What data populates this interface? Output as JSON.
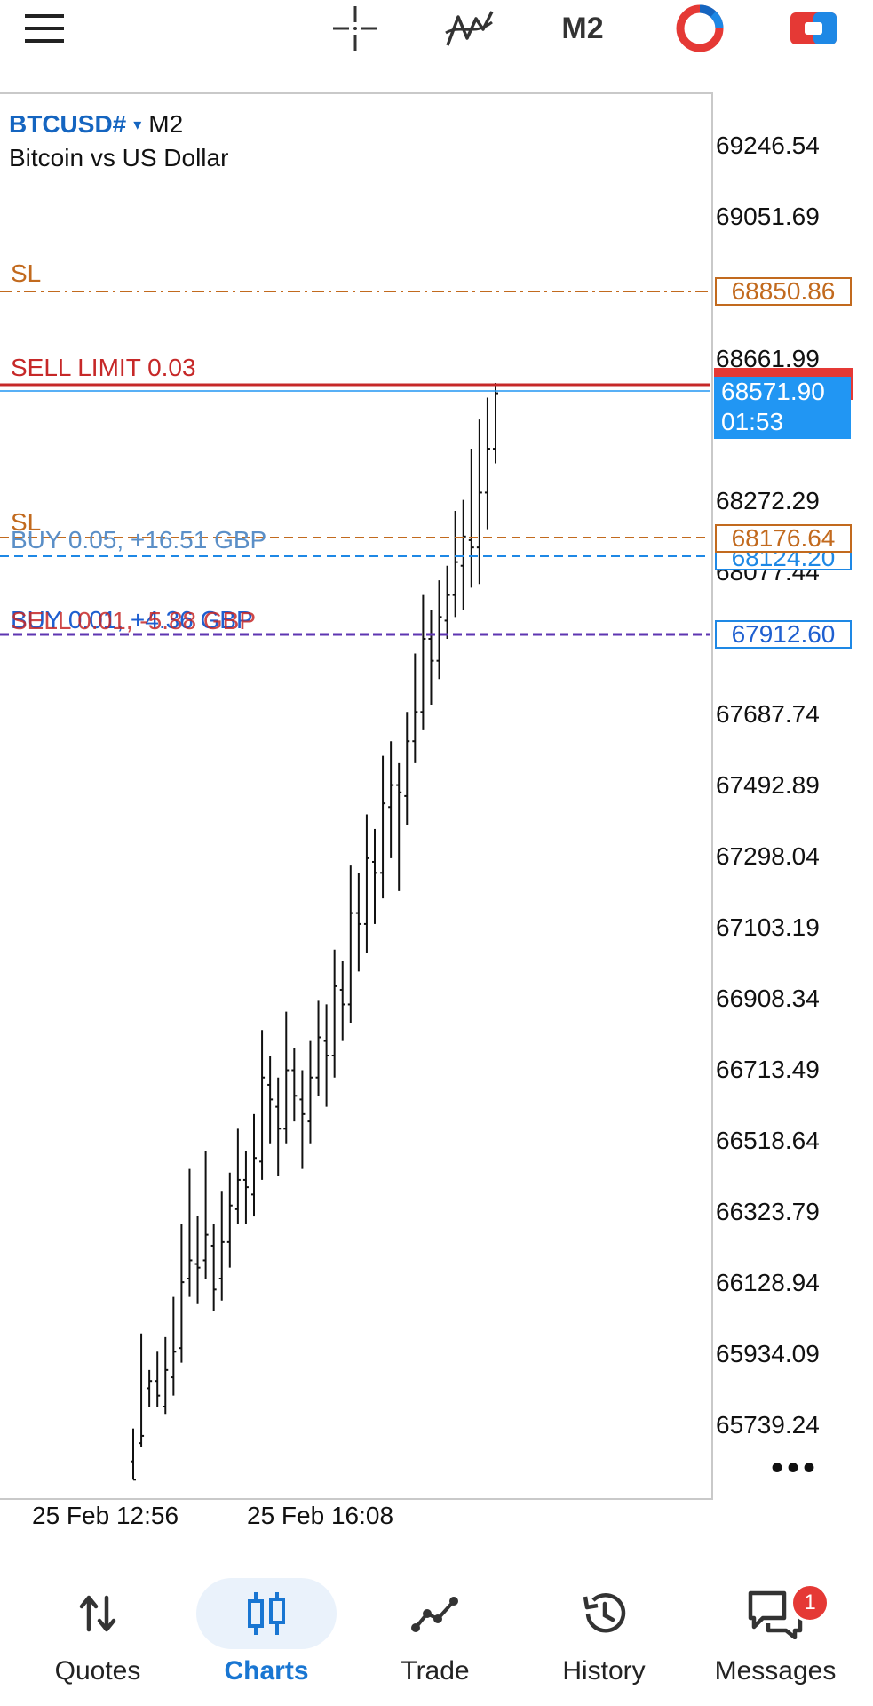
{
  "toolbar": {
    "period": "M2"
  },
  "symbol": {
    "ticker": "BTCUSD#",
    "caret": "▾",
    "period": "M2",
    "description": "Bitcoin vs US Dollar"
  },
  "chart_lines": {
    "sl_top_label": "SL",
    "sell_limit_label": "SELL LIMIT 0.03",
    "sl_mid_label": "SL",
    "buy_label": "BUY 0.05, +16.51 GBP",
    "sell_label": "SELL 0.01, -5.88 GBP",
    "buy_overlap_label": "BUY 0.01, +4.36 GBP"
  },
  "price_tags": {
    "sl_top": "68850.86",
    "current_price": "68571.90",
    "current_timer": "01:53",
    "sl_mid": "68176.64",
    "buy_open": "68124.20",
    "sell_open": "67912.60"
  },
  "price_axis": [
    "69246.54",
    "69051.69",
    "68661.99",
    "68272.29",
    "68077.44",
    "67687.74",
    "67492.89",
    "67298.04",
    "67103.19",
    "66908.34",
    "66713.49",
    "66518.64",
    "66323.79",
    "66128.94",
    "65934.09",
    "65739.24"
  ],
  "time_axis": [
    "25 Feb 12:56",
    "25 Feb 16:08"
  ],
  "more": "•••",
  "nav": {
    "quotes": "Quotes",
    "charts": "Charts",
    "trade": "Trade",
    "history": "History",
    "messages": "Messages",
    "messages_badge": "1"
  },
  "colors": {
    "accent": "#1976d2",
    "sl": "#c26a1e",
    "sell_limit": "#c62828",
    "buy_line": "#1e88e5",
    "sell_line": "#5e35b1",
    "badge": "#e53935"
  },
  "chart_data": {
    "type": "bar",
    "symbol": "BTCUSD#",
    "timeframe": "M2",
    "x": [
      "25 Feb 12:56",
      "25 Feb 16:08"
    ],
    "ylim": [
      65600,
      69350
    ],
    "levels": {
      "sl_top": 68850.86,
      "sell_limit": 68594.0,
      "current": 68571.9,
      "sl_mid": 68176.64,
      "buy_open": 68124.2,
      "sell_open": 67912.6
    },
    "ohlc": [
      [
        65650,
        65600,
        65740,
        65600
      ],
      [
        65700,
        65720,
        66000,
        65690
      ],
      [
        65850,
        65870,
        65900,
        65800
      ],
      [
        65870,
        65830,
        65950,
        65800
      ],
      [
        65800,
        65900,
        65990,
        65780
      ],
      [
        65880,
        65950,
        66100,
        65830
      ],
      [
        65960,
        66140,
        66300,
        65920
      ],
      [
        66150,
        66200,
        66450,
        66100
      ],
      [
        66190,
        66180,
        66320,
        66080
      ],
      [
        66200,
        66270,
        66500,
        66150
      ],
      [
        66240,
        66120,
        66300,
        66060
      ],
      [
        66150,
        66250,
        66390,
        66090
      ],
      [
        66250,
        66350,
        66440,
        66180
      ],
      [
        66340,
        66420,
        66560,
        66300
      ],
      [
        66420,
        66400,
        66500,
        66300
      ],
      [
        66380,
        66480,
        66600,
        66320
      ],
      [
        66470,
        66700,
        66830,
        66420
      ],
      [
        66680,
        66640,
        66760,
        66520
      ],
      [
        66620,
        66560,
        66700,
        66430
      ],
      [
        66560,
        66720,
        66880,
        66520
      ],
      [
        66720,
        66650,
        66780,
        66580
      ],
      [
        66640,
        66600,
        66720,
        66450
      ],
      [
        66580,
        66700,
        66800,
        66520
      ],
      [
        66700,
        66810,
        66910,
        66650
      ],
      [
        66800,
        66760,
        66900,
        66620
      ],
      [
        66760,
        66950,
        67050,
        66700
      ],
      [
        66940,
        66900,
        67020,
        66800
      ],
      [
        66900,
        67150,
        67280,
        66850
      ],
      [
        67150,
        67120,
        67260,
        66990
      ],
      [
        67120,
        67300,
        67420,
        67040
      ],
      [
        67290,
        67260,
        67380,
        67120
      ],
      [
        67260,
        67450,
        67580,
        67190
      ],
      [
        67440,
        67500,
        67620,
        67300
      ],
      [
        67500,
        67480,
        67560,
        67210
      ],
      [
        67470,
        67620,
        67700,
        67390
      ],
      [
        67620,
        67700,
        67860,
        67560
      ],
      [
        67700,
        67900,
        68020,
        67650
      ],
      [
        67900,
        67840,
        67980,
        67720
      ],
      [
        67840,
        67960,
        68060,
        67790
      ],
      [
        67950,
        68020,
        68100,
        67900
      ],
      [
        68020,
        68110,
        68250,
        67960
      ],
      [
        68100,
        68180,
        68280,
        67980
      ],
      [
        68170,
        68150,
        68420,
        68040
      ],
      [
        68150,
        68300,
        68500,
        68050
      ],
      [
        68300,
        68420,
        68560,
        68200
      ],
      [
        68420,
        68571.9,
        68600,
        68380
      ]
    ]
  }
}
